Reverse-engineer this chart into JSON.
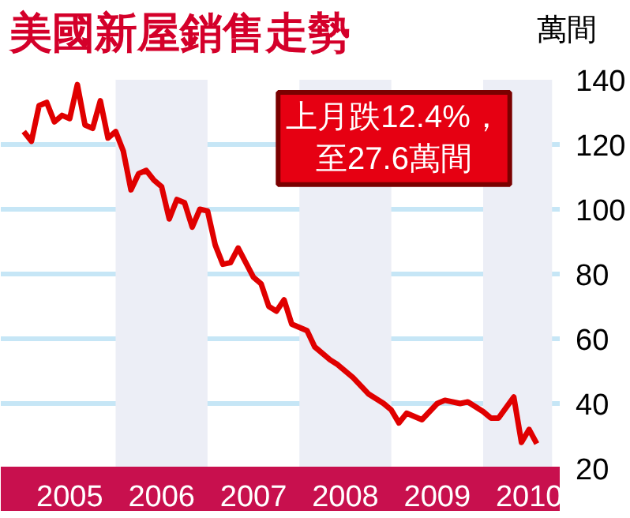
{
  "chart_data": {
    "type": "line",
    "title": "美國新屋銷售走勢",
    "ylabel": "萬間",
    "annotations": [
      "上月跌12.4%，至27.6萬間"
    ],
    "x": [
      "2005-01",
      "2005-02",
      "2005-03",
      "2005-04",
      "2005-05",
      "2005-06",
      "2005-07",
      "2005-08",
      "2005-09",
      "2005-10",
      "2005-11",
      "2005-12",
      "2006-01",
      "2006-02",
      "2006-03",
      "2006-04",
      "2006-05",
      "2006-06",
      "2006-07",
      "2006-08",
      "2006-09",
      "2006-10",
      "2006-11",
      "2006-12",
      "2007-01",
      "2007-02",
      "2007-03",
      "2007-04",
      "2007-05",
      "2007-06",
      "2007-07",
      "2007-08",
      "2007-09",
      "2007-10",
      "2007-11",
      "2007-12",
      "2008-02",
      "2008-03",
      "2008-05",
      "2008-06",
      "2008-08",
      "2008-10",
      "2008-12",
      "2009-01",
      "2009-02",
      "2009-03",
      "2009-05",
      "2009-07",
      "2009-08",
      "2009-10",
      "2009-11",
      "2010-01",
      "2010-02",
      "2010-03",
      "2010-05",
      "2010-06",
      "2010-07",
      "2010-08"
    ],
    "series": [
      {
        "color": "#e00000",
        "values": [
          124,
          121,
          132,
          133,
          127,
          129,
          128,
          138.5,
          126,
          125,
          133.5,
          122,
          124,
          118,
          106,
          111,
          112,
          109,
          107,
          97,
          103,
          102,
          94.5,
          100,
          99.5,
          89,
          83,
          83.5,
          88,
          83.5,
          79,
          77,
          70,
          68.5,
          72,
          64.5,
          62.5,
          57.5,
          53.5,
          52,
          48,
          43,
          40,
          38,
          34,
          37,
          35,
          40,
          41,
          40,
          40.5,
          37.5,
          35.5,
          35.5,
          42,
          28,
          32,
          27.6
        ]
      }
    ],
    "xlim": [
      "2004-10",
      "2010-11"
    ],
    "ylim": [
      20,
      140
    ],
    "xticks": [
      {
        "value": "2005-07",
        "label": "2005"
      },
      {
        "value": "2006-07",
        "label": "2006"
      },
      {
        "value": "2007-07",
        "label": "2007"
      },
      {
        "value": "2008-07",
        "label": "2008"
      },
      {
        "value": "2009-07",
        "label": "2009"
      },
      {
        "value": "2010-07",
        "label": "2010"
      }
    ],
    "yticks": [
      20,
      40,
      60,
      80,
      100,
      120,
      140
    ],
    "bands": [
      {
        "axis": "x",
        "from": "2006-01",
        "to": "2007-01",
        "color": "#eceef6"
      },
      {
        "axis": "x",
        "from": "2008-01",
        "to": "2009-01",
        "color": "#eceef6"
      },
      {
        "axis": "x",
        "from": "2010-01",
        "to": "2010-10",
        "color": "#eceef6"
      }
    ],
    "grid": "y",
    "marker": "none",
    "line_style": "solid"
  }
}
